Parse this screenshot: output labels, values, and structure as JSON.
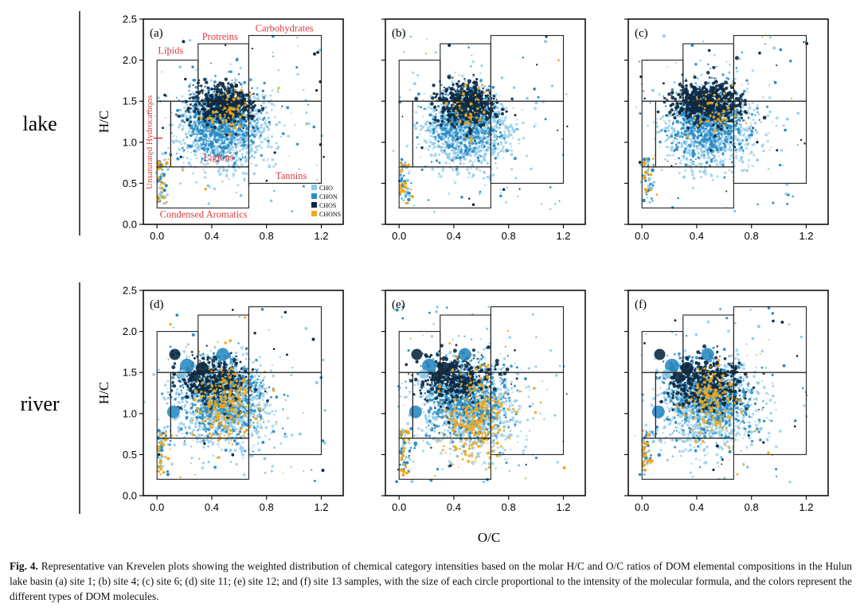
{
  "row_labels": [
    "lake",
    "river"
  ],
  "figure_xlabel": "O/C",
  "caption": {
    "label": "Fig. 4.",
    "text": "Representative van Krevelen plots showing the weighted distribution of chemical category intensities based on the molar H/C and O/C ratios of DOM elemental compositions in the Hulun lake basin (a) site 1; (b) site 4; (c) site 6; (d) site 11; (e) site 12; and (f) site 13 samples, with the size of each circle proportional to the intensity of the molecular formula, and the colors represent the different types of DOM molecules."
  },
  "colors": {
    "CHO": "#8ec9ea",
    "CHON": "#2b8cc4",
    "CHOS": "#0c2a44",
    "CHONS": "#f0a81c",
    "annotation": "#e23a3a"
  },
  "chart_data": [
    {
      "type": "scatter",
      "panel": "(a)",
      "row": "lake",
      "xlabel": "",
      "ylabel": "H/C",
      "xlim": [
        -0.1,
        1.36
      ],
      "ylim": [
        0,
        2.5
      ],
      "xticks": [
        "0.0",
        "0.4",
        "0.8",
        "1.2"
      ],
      "yticks": [
        "0.0",
        "0.5",
        "1.0",
        "1.5",
        "2.0",
        "2.5"
      ],
      "legend": {
        "position": "bottom-right",
        "entries": [
          "CHO",
          "CHON",
          "CHOS",
          "CHONS"
        ]
      },
      "regions": [
        {
          "name": "Lipids",
          "o_c": [
            0,
            0.3
          ],
          "h_c": [
            1.5,
            2.0
          ]
        },
        {
          "name": "Protreins",
          "o_c": [
            0.3,
            0.67
          ],
          "h_c": [
            1.5,
            2.2
          ]
        },
        {
          "name": "Carbohydrates",
          "o_c": [
            0.67,
            1.2
          ],
          "h_c": [
            1.5,
            2.3
          ]
        },
        {
          "name": "Unsaturated Hydrocarbons",
          "o_c": [
            0,
            0.1
          ],
          "h_c": [
            0.7,
            1.5
          ]
        },
        {
          "name": "Lignins",
          "o_c": [
            0.1,
            0.67
          ],
          "h_c": [
            0.7,
            1.5
          ]
        },
        {
          "name": "Tannins",
          "o_c": [
            0.67,
            1.2
          ],
          "h_c": [
            0.5,
            1.5
          ]
        },
        {
          "name": "Condensed Aromatics",
          "o_c": [
            0,
            0.67
          ],
          "h_c": [
            0.2,
            0.7
          ]
        }
      ],
      "series": [
        {
          "name": "CHO",
          "center": [
            0.5,
            1.15
          ],
          "spread": [
            0.16,
            0.25
          ],
          "count": 1100
        },
        {
          "name": "CHON",
          "center": [
            0.47,
            1.25
          ],
          "spread": [
            0.14,
            0.22
          ],
          "count": 650
        },
        {
          "name": "CHOS",
          "center": [
            0.5,
            1.45
          ],
          "spread": [
            0.11,
            0.13
          ],
          "count": 500
        },
        {
          "name": "CHONS",
          "center": [
            0.5,
            1.35
          ],
          "spread": [
            0.08,
            0.15
          ],
          "count": 70
        }
      ]
    },
    {
      "type": "scatter",
      "panel": "(b)",
      "row": "lake",
      "xlabel": "",
      "ylabel": "",
      "xlim": [
        -0.1,
        1.36
      ],
      "ylim": [
        0,
        2.5
      ],
      "xticks": [
        "0.0",
        "0.4",
        "0.8",
        "1.2"
      ],
      "yticks": [],
      "series": [
        {
          "name": "CHO",
          "center": [
            0.5,
            1.15
          ],
          "spread": [
            0.16,
            0.24
          ],
          "count": 1100
        },
        {
          "name": "CHON",
          "center": [
            0.48,
            1.25
          ],
          "spread": [
            0.13,
            0.2
          ],
          "count": 500
        },
        {
          "name": "CHOS",
          "center": [
            0.5,
            1.45
          ],
          "spread": [
            0.11,
            0.13
          ],
          "count": 480
        },
        {
          "name": "CHONS",
          "center": [
            0.5,
            1.35
          ],
          "spread": [
            0.08,
            0.15
          ],
          "count": 50
        }
      ]
    },
    {
      "type": "scatter",
      "panel": "(c)",
      "row": "lake",
      "xlabel": "",
      "ylabel": "",
      "xlim": [
        -0.1,
        1.36
      ],
      "ylim": [
        0,
        2.5
      ],
      "xticks": [
        "0.0",
        "0.4",
        "0.8",
        "1.2"
      ],
      "yticks": [],
      "series": [
        {
          "name": "CHO",
          "center": [
            0.5,
            1.15
          ],
          "spread": [
            0.16,
            0.25
          ],
          "count": 1100
        },
        {
          "name": "CHON",
          "center": [
            0.47,
            1.25
          ],
          "spread": [
            0.14,
            0.22
          ],
          "count": 650
        },
        {
          "name": "CHOS",
          "center": [
            0.48,
            1.48
          ],
          "spread": [
            0.12,
            0.12
          ],
          "count": 620
        },
        {
          "name": "CHONS",
          "center": [
            0.5,
            1.35
          ],
          "spread": [
            0.08,
            0.15
          ],
          "count": 50
        }
      ]
    },
    {
      "type": "scatter",
      "panel": "(d)",
      "row": "river",
      "xlabel": "",
      "ylabel": "H/C",
      "xlim": [
        -0.1,
        1.36
      ],
      "ylim": [
        0,
        2.5
      ],
      "xticks": [
        "0.0",
        "0.4",
        "0.8",
        "1.2"
      ],
      "yticks": [
        "0.0",
        "0.5",
        "1.0",
        "1.5",
        "2.0",
        "2.5"
      ],
      "series": [
        {
          "name": "CHO",
          "center": [
            0.5,
            1.1
          ],
          "spread": [
            0.17,
            0.27
          ],
          "count": 1100
        },
        {
          "name": "CHON",
          "center": [
            0.47,
            1.2
          ],
          "spread": [
            0.15,
            0.23
          ],
          "count": 650
        },
        {
          "name": "CHOS",
          "center": [
            0.42,
            1.4
          ],
          "spread": [
            0.13,
            0.15
          ],
          "count": 380
        },
        {
          "name": "CHONS",
          "center": [
            0.5,
            1.15
          ],
          "spread": [
            0.1,
            0.25
          ],
          "count": 240
        }
      ]
    },
    {
      "type": "scatter",
      "panel": "(e)",
      "row": "river",
      "xlabel": "",
      "ylabel": "",
      "xlim": [
        -0.1,
        1.36
      ],
      "ylim": [
        0,
        2.5
      ],
      "xticks": [
        "0.0",
        "0.4",
        "0.8",
        "1.2"
      ],
      "yticks": [],
      "series": [
        {
          "name": "CHO",
          "center": [
            0.52,
            1.08
          ],
          "spread": [
            0.18,
            0.28
          ],
          "count": 1100
        },
        {
          "name": "CHON",
          "center": [
            0.48,
            1.18
          ],
          "spread": [
            0.15,
            0.24
          ],
          "count": 650
        },
        {
          "name": "CHOS",
          "center": [
            0.42,
            1.4
          ],
          "spread": [
            0.13,
            0.15
          ],
          "count": 380
        },
        {
          "name": "CHONS",
          "center": [
            0.55,
            0.95
          ],
          "spread": [
            0.12,
            0.28
          ],
          "count": 280
        }
      ]
    },
    {
      "type": "scatter",
      "panel": "(f)",
      "row": "river",
      "xlabel": "",
      "ylabel": "",
      "xlim": [
        -0.1,
        1.36
      ],
      "ylim": [
        0,
        2.5
      ],
      "xticks": [
        "0.0",
        "0.4",
        "0.8",
        "1.2"
      ],
      "yticks": [],
      "series": [
        {
          "name": "CHO",
          "center": [
            0.5,
            1.1
          ],
          "spread": [
            0.17,
            0.27
          ],
          "count": 1100
        },
        {
          "name": "CHON",
          "center": [
            0.47,
            1.2
          ],
          "spread": [
            0.15,
            0.23
          ],
          "count": 650
        },
        {
          "name": "CHOS",
          "center": [
            0.45,
            1.38
          ],
          "spread": [
            0.13,
            0.16
          ],
          "count": 420
        },
        {
          "name": "CHONS",
          "center": [
            0.5,
            1.15
          ],
          "spread": [
            0.09,
            0.22
          ],
          "count": 180
        }
      ]
    }
  ]
}
